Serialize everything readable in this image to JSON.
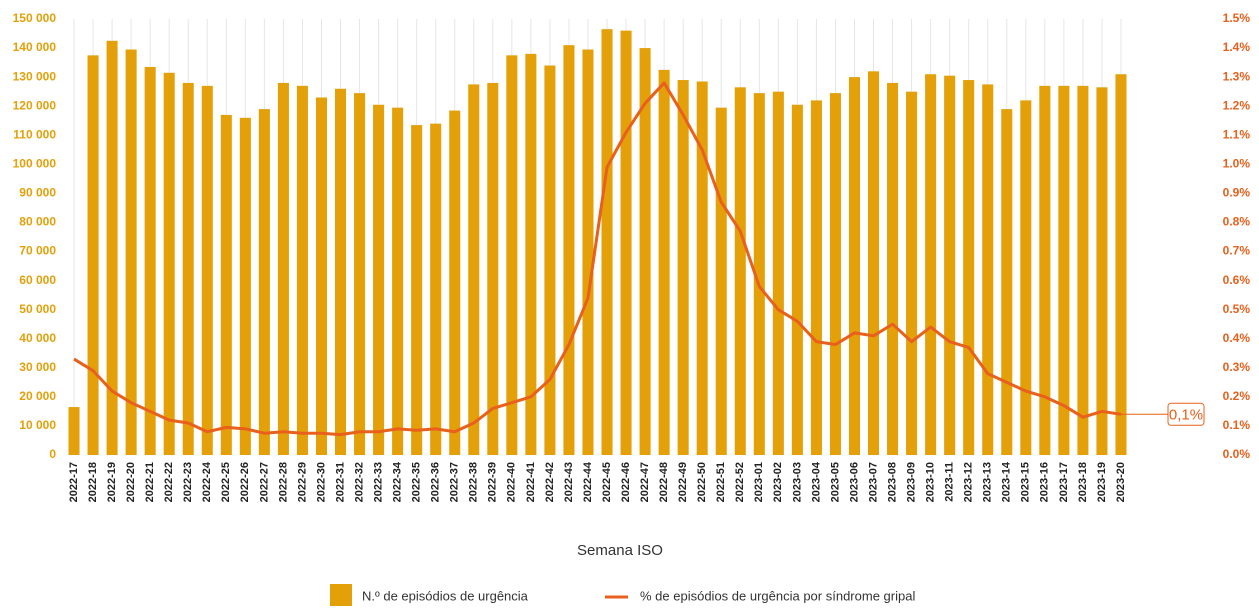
{
  "chart_data": {
    "type": "bar",
    "x_label": "Semana ISO",
    "categories": [
      "2022-17",
      "2022-18",
      "2022-19",
      "2022-20",
      "2022-21",
      "2022-22",
      "2022-23",
      "2022-24",
      "2022-25",
      "2022-26",
      "2022-27",
      "2022-28",
      "2022-29",
      "2022-30",
      "2022-31",
      "2022-32",
      "2022-33",
      "2022-34",
      "2022-35",
      "2022-36",
      "2022-37",
      "2022-38",
      "2022-39",
      "2022-40",
      "2022-41",
      "2022-42",
      "2022-43",
      "2022-44",
      "2022-45",
      "2022-46",
      "2022-47",
      "2022-48",
      "2022-49",
      "2022-50",
      "2022-51",
      "2022-52",
      "2023-01",
      "2023-02",
      "2023-03",
      "2023-04",
      "2023-05",
      "2023-06",
      "2023-07",
      "2023-08",
      "2023-09",
      "2023-10",
      "2023-11",
      "2023-12",
      "2023-13",
      "2023-14",
      "2023-15",
      "2023-16",
      "2023-17",
      "2023-18",
      "2023-19",
      "2023-20"
    ],
    "series": [
      {
        "name": "N.º de episódios de urgência",
        "type": "bar",
        "axis": "y",
        "color": "#e3a008",
        "values": [
          16500,
          137500,
          142500,
          139500,
          133500,
          131500,
          128000,
          127000,
          117000,
          116000,
          119000,
          128000,
          127000,
          123000,
          126000,
          124500,
          120500,
          119500,
          113500,
          114000,
          118500,
          127500,
          128000,
          137500,
          138000,
          134000,
          141000,
          139500,
          146500,
          146000,
          140000,
          132500,
          129000,
          128500,
          119500,
          126500,
          124500,
          125000,
          120500,
          122000,
          124500,
          130000,
          132000,
          128000,
          125000,
          131000,
          130500,
          129000,
          127500,
          119000,
          122000,
          127000,
          127000,
          127000,
          126500,
          131000
        ]
      },
      {
        "name": "% de episódios de urgência por síndrome gripal",
        "type": "line",
        "axis": "y2",
        "color": "#e8601c",
        "values": [
          0.33,
          0.29,
          0.22,
          0.18,
          0.15,
          0.12,
          0.11,
          0.08,
          0.095,
          0.09,
          0.075,
          0.08,
          0.075,
          0.075,
          0.07,
          0.08,
          0.08,
          0.09,
          0.085,
          0.09,
          0.08,
          0.11,
          0.16,
          0.18,
          0.2,
          0.26,
          0.38,
          0.54,
          0.99,
          1.11,
          1.21,
          1.28,
          1.17,
          1.05,
          0.87,
          0.77,
          0.58,
          0.5,
          0.46,
          0.39,
          0.38,
          0.42,
          0.41,
          0.45,
          0.39,
          0.44,
          0.39,
          0.37,
          0.28,
          0.25,
          0.22,
          0.2,
          0.17,
          0.13,
          0.15,
          0.14
        ],
        "value_labels": [
          null,
          null,
          null,
          null,
          null,
          null,
          null,
          null,
          null,
          null,
          null,
          null,
          null,
          null,
          null,
          null,
          null,
          null,
          null,
          null,
          null,
          null,
          null,
          null,
          null,
          null,
          null,
          null,
          null,
          null,
          null,
          null,
          null,
          null,
          null,
          null,
          null,
          null,
          null,
          null,
          null,
          null,
          null,
          null,
          null,
          null,
          null,
          null,
          null,
          null,
          null,
          null,
          null,
          null,
          null,
          "0,1%"
        ]
      }
    ],
    "ylim": [
      0,
      150000
    ],
    "yticks": [
      0,
      {
        "value": 10000,
        "label": "10 000"
      },
      {
        "value": 20000,
        "label": "20 000"
      },
      {
        "value": 30000,
        "label": "30 000"
      },
      {
        "value": 40000,
        "label": "40 000"
      },
      {
        "value": 50000,
        "label": "50 000"
      },
      {
        "value": 60000,
        "label": "60 000"
      },
      {
        "value": 70000,
        "label": "70 000"
      },
      {
        "value": 80000,
        "label": "80 000"
      },
      {
        "value": 90000,
        "label": "90 000"
      },
      {
        "value": 100000,
        "label": "100 000"
      },
      {
        "value": 110000,
        "label": "110 000"
      },
      {
        "value": 120000,
        "label": "120 000"
      },
      {
        "value": 130000,
        "label": "130 000"
      },
      {
        "value": 140000,
        "label": "140 000"
      },
      {
        "value": 150000,
        "label": "150 000"
      }
    ],
    "y2lim": [
      0,
      1.5
    ],
    "y2ticks": [
      {
        "value": 0,
        "label": "0.0%"
      },
      {
        "value": 0.1,
        "label": "0.1%"
      },
      {
        "value": 0.2,
        "label": "0.2%"
      },
      {
        "value": 0.3,
        "label": "0.3%"
      },
      {
        "value": 0.4,
        "label": "0.4%"
      },
      {
        "value": 0.5,
        "label": "0.5%"
      },
      {
        "value": 0.6,
        "label": "0.6%"
      },
      {
        "value": 0.7,
        "label": "0.7%"
      },
      {
        "value": 0.8,
        "label": "0.8%"
      },
      {
        "value": 0.9,
        "label": "0.9%"
      },
      {
        "value": 1.0,
        "label": "1.0%"
      },
      {
        "value": 1.1,
        "label": "1.1%"
      },
      {
        "value": 1.2,
        "label": "1.2%"
      },
      {
        "value": 1.3,
        "label": "1.3%"
      },
      {
        "value": 1.4,
        "label": "1.4%"
      },
      {
        "value": 1.5,
        "label": "1.5%"
      }
    ],
    "legend": "bottom"
  }
}
